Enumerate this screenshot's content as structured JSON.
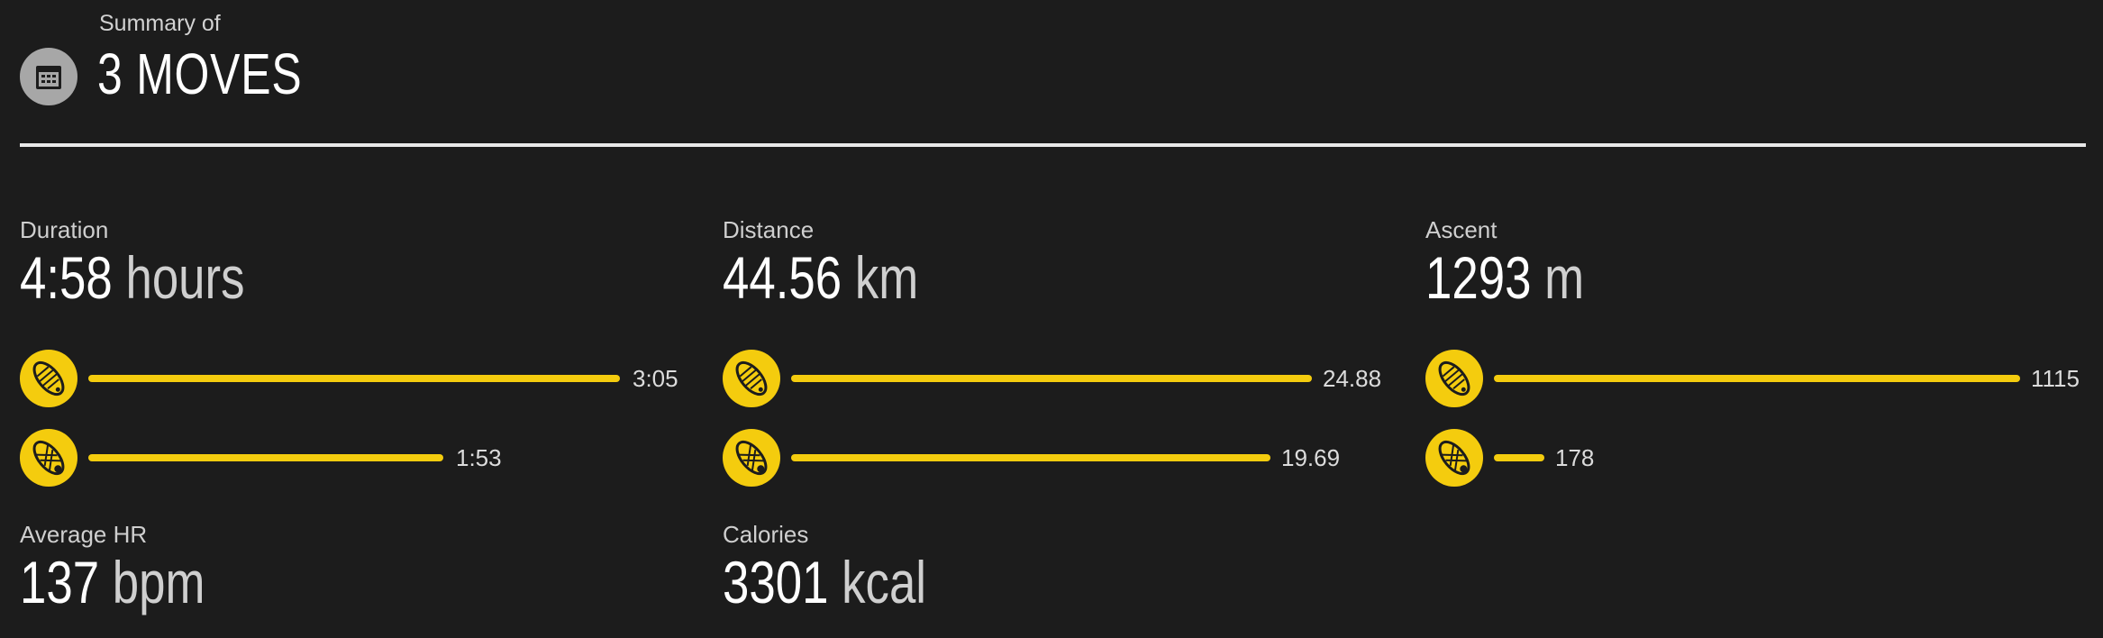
{
  "header": {
    "subtitle": "Summary of",
    "title": "3 MOVES",
    "icon": "calendar-icon"
  },
  "accent_color": "#f4cc0e",
  "background_color": "#1c1c1c",
  "metrics": {
    "duration": {
      "label": "Duration",
      "value": "4:58",
      "unit": "hours",
      "breakdown": [
        {
          "icon": "running-shoe-icon",
          "value": "3:05",
          "fraction": 1.0
        },
        {
          "icon": "trail-shoe-icon",
          "value": "1:53",
          "fraction": 0.61
        }
      ]
    },
    "distance": {
      "label": "Distance",
      "value": "44.56",
      "unit": "km",
      "breakdown": [
        {
          "icon": "running-shoe-icon",
          "value": "24.88",
          "fraction": 1.0
        },
        {
          "icon": "trail-shoe-icon",
          "value": "19.69",
          "fraction": 0.79
        }
      ]
    },
    "ascent": {
      "label": "Ascent",
      "value": "1293",
      "unit": "m",
      "breakdown": [
        {
          "icon": "running-shoe-icon",
          "value": "1115",
          "fraction": 1.0
        },
        {
          "icon": "trail-shoe-icon",
          "value": "178",
          "fraction": 0.16
        }
      ]
    },
    "average_hr": {
      "label": "Average HR",
      "value": "137",
      "unit": "bpm"
    },
    "calories": {
      "label": "Calories",
      "value": "3301",
      "unit": "kcal"
    }
  }
}
